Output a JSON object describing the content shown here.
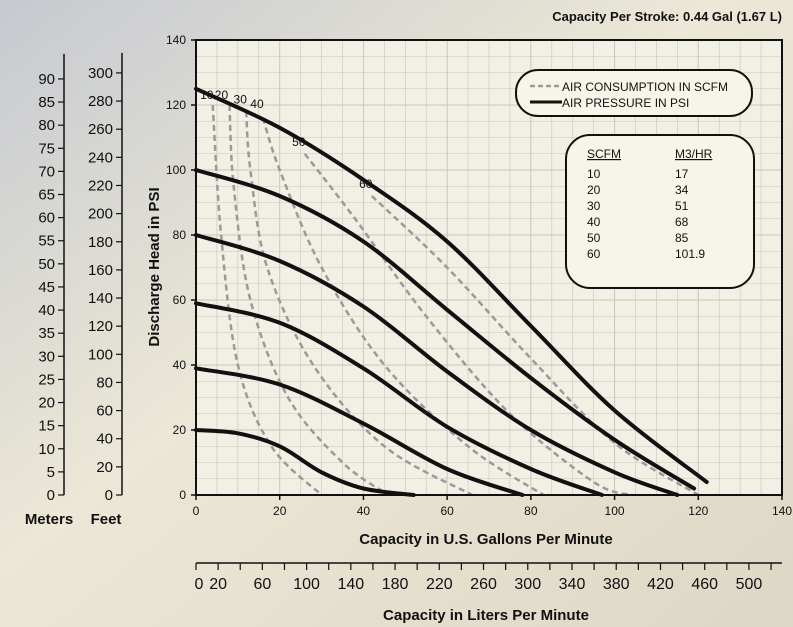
{
  "chart_data": {
    "type": "line",
    "header_text": "Capacity Per Stroke: 0.44 Gal (1.67 L)",
    "xlabel": "Capacity in U.S. Gallons Per Minute",
    "ylabel": "Discharge Head in PSI",
    "xlim": [
      0,
      140
    ],
    "ylim": [
      0,
      140
    ],
    "xticks": [
      0,
      20,
      40,
      60,
      80,
      100,
      120,
      140
    ],
    "yticks": [
      0,
      20,
      40,
      60,
      80,
      100,
      120,
      140
    ],
    "grid": true,
    "secondary_x_axis": {
      "label": "Capacity in Liters Per Minute",
      "ticks": [
        0,
        20,
        60,
        100,
        140,
        180,
        220,
        260,
        300,
        340,
        380,
        420,
        460,
        500
      ]
    },
    "left_axes": [
      {
        "label": "Meters",
        "ticks": [
          0,
          5,
          10,
          15,
          20,
          25,
          30,
          35,
          40,
          45,
          50,
          55,
          60,
          65,
          70,
          75,
          80,
          85,
          90
        ]
      },
      {
        "label": "Feet",
        "ticks": [
          0,
          20,
          40,
          60,
          80,
          100,
          120,
          140,
          160,
          180,
          200,
          220,
          240,
          260,
          280,
          300
        ]
      }
    ],
    "legend": {
      "placement": "top-right",
      "entries": [
        {
          "label": "AIR CONSUMPTION IN SCFM",
          "style": "dashed",
          "color": "#999999"
        },
        {
          "label": "AIR PRESSURE IN PSI",
          "style": "solid",
          "color": "#111111"
        }
      ]
    },
    "conversion_table": {
      "headers": [
        "SCFM",
        "M3/HR"
      ],
      "rows": [
        [
          "10",
          "17"
        ],
        [
          "20",
          "34"
        ],
        [
          "30",
          "51"
        ],
        [
          "40",
          "68"
        ],
        [
          "50",
          "85"
        ],
        [
          "60",
          "101.9"
        ]
      ]
    },
    "pressure_series": [
      {
        "points": [
          [
            0,
            125
          ],
          [
            20,
            113
          ],
          [
            40,
            97
          ],
          [
            60,
            78
          ],
          [
            80,
            52
          ],
          [
            100,
            26
          ],
          [
            122,
            4
          ]
        ]
      },
      {
        "points": [
          [
            0,
            100
          ],
          [
            20,
            92
          ],
          [
            40,
            78
          ],
          [
            60,
            57
          ],
          [
            80,
            36
          ],
          [
            100,
            17
          ],
          [
            119,
            2
          ]
        ]
      },
      {
        "points": [
          [
            0,
            80
          ],
          [
            20,
            72
          ],
          [
            40,
            58
          ],
          [
            60,
            38
          ],
          [
            80,
            20
          ],
          [
            100,
            7
          ],
          [
            115,
            0
          ]
        ]
      },
      {
        "points": [
          [
            0,
            59
          ],
          [
            20,
            53
          ],
          [
            40,
            39
          ],
          [
            60,
            21
          ],
          [
            80,
            8
          ],
          [
            97,
            0
          ]
        ]
      },
      {
        "points": [
          [
            0,
            39
          ],
          [
            20,
            34
          ],
          [
            40,
            22
          ],
          [
            60,
            8
          ],
          [
            78,
            0
          ]
        ]
      },
      {
        "points": [
          [
            0,
            20
          ],
          [
            10,
            19
          ],
          [
            20,
            15
          ],
          [
            30,
            7
          ],
          [
            40,
            2
          ],
          [
            52,
            0
          ]
        ]
      }
    ],
    "scfm_series": [
      {
        "label": "10",
        "points": [
          [
            4,
            120
          ],
          [
            6,
            80
          ],
          [
            10,
            40
          ],
          [
            18,
            15
          ],
          [
            30,
            0
          ]
        ]
      },
      {
        "label": "20",
        "points": [
          [
            8,
            120
          ],
          [
            9,
            95
          ],
          [
            13,
            60
          ],
          [
            22,
            30
          ],
          [
            35,
            10
          ],
          [
            46,
            0
          ]
        ]
      },
      {
        "label": "30",
        "points": [
          [
            12,
            118
          ],
          [
            13,
            100
          ],
          [
            17,
            70
          ],
          [
            28,
            40
          ],
          [
            45,
            15
          ],
          [
            66,
            0
          ]
        ]
      },
      {
        "label": "40",
        "points": [
          [
            16,
            116
          ],
          [
            20,
            100
          ],
          [
            30,
            70
          ],
          [
            45,
            40
          ],
          [
            65,
            15
          ],
          [
            83,
            0
          ]
        ]
      },
      {
        "label": "50",
        "points": [
          [
            26,
            105
          ],
          [
            38,
            85
          ],
          [
            55,
            55
          ],
          [
            75,
            25
          ],
          [
            95,
            4
          ],
          [
            104,
            0
          ]
        ]
      },
      {
        "label": "60",
        "points": [
          [
            42,
            92
          ],
          [
            60,
            70
          ],
          [
            80,
            42
          ],
          [
            100,
            16
          ],
          [
            120,
            0
          ]
        ]
      }
    ]
  }
}
